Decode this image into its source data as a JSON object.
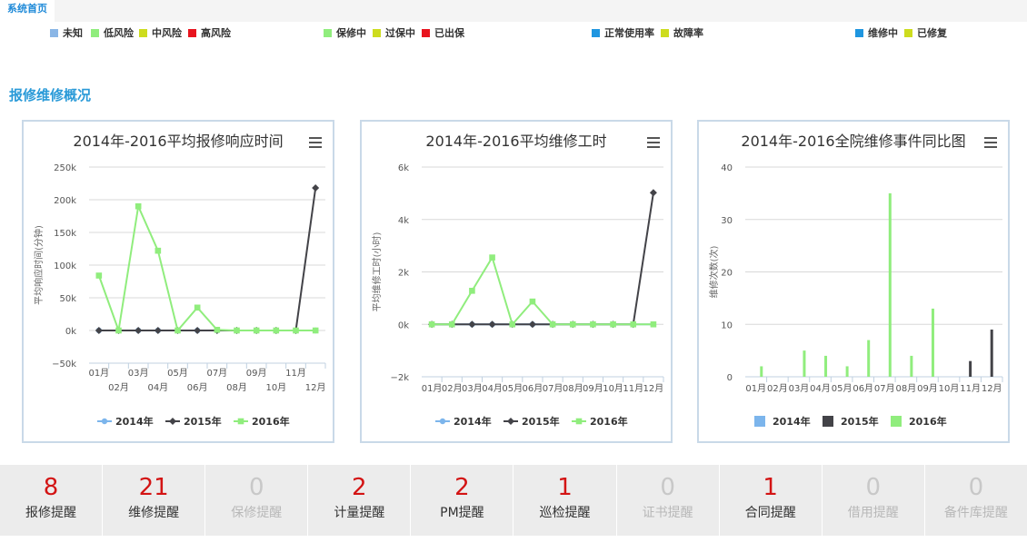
{
  "nav": {
    "home_tab": "系统首页"
  },
  "status_legends": [
    {
      "label": "未知",
      "color": "#8ab6e6"
    },
    {
      "label": "低风险",
      "color": "#90ed7d"
    },
    {
      "label": "中风险",
      "color": "#cddc1e"
    },
    {
      "label": "高风险",
      "color": "#e8141e"
    },
    {
      "label": "保修中",
      "color": "#90ed7d"
    },
    {
      "label": "过保中",
      "color": "#cddc1e"
    },
    {
      "label": "已出保",
      "color": "#e8141e"
    },
    {
      "label": "正常使用率",
      "color": "#1f96e0"
    },
    {
      "label": "故障率",
      "color": "#cddc1e"
    },
    {
      "label": "维修中",
      "color": "#1f96e0"
    },
    {
      "label": "已修复",
      "color": "#cddc1e"
    }
  ],
  "section": {
    "title": "报修维修概况"
  },
  "chart_data": [
    {
      "type": "line",
      "title": "2014年-2016平均报修响应时间",
      "ylabel": "平均响应时间(分钟)",
      "categories": [
        "01月",
        "02月",
        "03月",
        "04月",
        "05月",
        "06月",
        "07月",
        "08月",
        "09月",
        "10月",
        "11月",
        "12月"
      ],
      "ylim": [
        -50000,
        250000
      ],
      "yticks": [
        -50000,
        0,
        50000,
        100000,
        150000,
        200000,
        250000
      ],
      "ytick_labels": [
        "−50k",
        "0k",
        "50k",
        "100k",
        "150k",
        "200k",
        "250k"
      ],
      "series": [
        {
          "name": "2014年",
          "color": "#7cb5ec",
          "marker": "circle",
          "values": [
            0,
            0,
            0,
            0,
            0,
            0,
            0,
            0,
            0,
            0,
            0,
            0
          ]
        },
        {
          "name": "2015年",
          "color": "#434348",
          "marker": "diamond",
          "values": [
            0,
            0,
            0,
            0,
            0,
            0,
            0,
            0,
            0,
            0,
            0,
            218000
          ]
        },
        {
          "name": "2016年",
          "color": "#90ed7d",
          "marker": "square",
          "values": [
            84000,
            0,
            190000,
            122000,
            0,
            35000,
            1000,
            0,
            0,
            0,
            0,
            0
          ]
        }
      ]
    },
    {
      "type": "line",
      "title": "2014年-2016平均维修工时",
      "ylabel": "平均维修工时(小时)",
      "categories": [
        "01月",
        "02月",
        "03月",
        "04月",
        "05月",
        "06月",
        "07月",
        "08月",
        "09月",
        "10月",
        "11月",
        "12月"
      ],
      "ylim": [
        -2000,
        6000
      ],
      "yticks": [
        -2000,
        0,
        2000,
        4000,
        6000
      ],
      "ytick_labels": [
        "−2k",
        "0k",
        "2k",
        "4k",
        "6k"
      ],
      "series": [
        {
          "name": "2014年",
          "color": "#7cb5ec",
          "marker": "circle",
          "values": [
            0,
            0,
            0,
            0,
            0,
            0,
            0,
            0,
            0,
            0,
            0,
            0
          ]
        },
        {
          "name": "2015年",
          "color": "#434348",
          "marker": "diamond",
          "values": [
            0,
            0,
            0,
            0,
            0,
            0,
            0,
            0,
            0,
            0,
            0,
            5020
          ]
        },
        {
          "name": "2016年",
          "color": "#90ed7d",
          "marker": "square",
          "values": [
            0,
            0,
            1280,
            2550,
            0,
            870,
            0,
            0,
            0,
            0,
            0,
            0
          ]
        }
      ]
    },
    {
      "type": "bar",
      "title": "2014年-2016全院维修事件同比图",
      "ylabel": "维修次数(次)",
      "categories": [
        "01月",
        "02月",
        "03月",
        "04月",
        "05月",
        "06月",
        "07月",
        "08月",
        "09月",
        "10月",
        "11月",
        "12月"
      ],
      "ylim": [
        0,
        40
      ],
      "yticks": [
        0,
        10,
        20,
        30,
        40
      ],
      "ytick_labels": [
        "0",
        "10",
        "20",
        "30",
        "40"
      ],
      "series": [
        {
          "name": "2014年",
          "color": "#7cb5ec",
          "values": [
            0,
            0,
            0,
            0,
            0,
            0,
            0,
            0,
            0,
            0,
            0,
            0
          ]
        },
        {
          "name": "2015年",
          "color": "#434348",
          "values": [
            0,
            0,
            0,
            0,
            0,
            0,
            0,
            0,
            0,
            0,
            3,
            9
          ]
        },
        {
          "name": "2016年",
          "color": "#90ed7d",
          "values": [
            2,
            0,
            5,
            4,
            2,
            7,
            35,
            4,
            13,
            0,
            0,
            0
          ]
        }
      ]
    }
  ],
  "reminders": [
    {
      "count": "8",
      "label": "报修提醒",
      "active": true
    },
    {
      "count": "21",
      "label": "维修提醒",
      "active": true
    },
    {
      "count": "0",
      "label": "保修提醒",
      "active": false
    },
    {
      "count": "2",
      "label": "计量提醒",
      "active": true
    },
    {
      "count": "2",
      "label": "PM提醒",
      "active": true
    },
    {
      "count": "1",
      "label": "巡检提醒",
      "active": true
    },
    {
      "count": "0",
      "label": "证书提醒",
      "active": false
    },
    {
      "count": "1",
      "label": "合同提醒",
      "active": true
    },
    {
      "count": "0",
      "label": "借用提醒",
      "active": false
    },
    {
      "count": "0",
      "label": "备件库提醒",
      "active": false
    }
  ]
}
